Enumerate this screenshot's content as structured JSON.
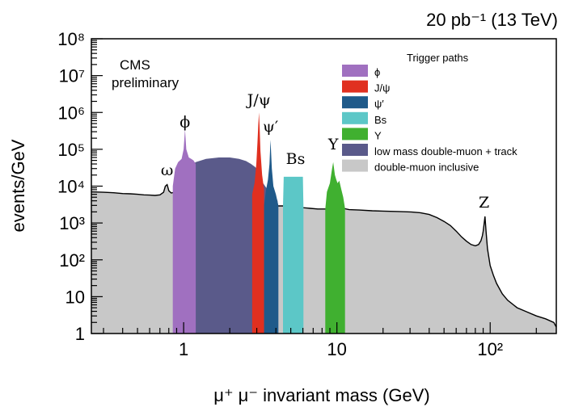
{
  "chart_data": {
    "type": "area",
    "title": "20 pb⁻¹ (13 TeV)",
    "header_left": [
      "CMS",
      "preliminary"
    ],
    "xlabel": "μ⁺ μ⁻ invariant mass (GeV)",
    "ylabel": "events/GeV",
    "x_scale": "log",
    "y_scale": "log",
    "xlim": [
      0.25,
      270
    ],
    "ylim": [
      1,
      100000000.0
    ],
    "grid": false,
    "x_ticks": [
      {
        "value": 1,
        "label": "1"
      },
      {
        "value": 10,
        "label": "10"
      },
      {
        "value": 100,
        "label": "10²"
      }
    ],
    "y_ticks": [
      {
        "value": 1,
        "label": "1"
      },
      {
        "value": 10,
        "label": "10"
      },
      {
        "value": 100,
        "label": "10²"
      },
      {
        "value": 1000,
        "label": "10³"
      },
      {
        "value": 10000,
        "label": "10⁴"
      },
      {
        "value": 100000,
        "label": "10⁵"
      },
      {
        "value": 1000000,
        "label": "10⁶"
      },
      {
        "value": 10000000,
        "label": "10⁷"
      },
      {
        "value": 100000000,
        "label": "10⁸"
      }
    ],
    "legend_title": "Trigger paths",
    "legend_placement": "top-right",
    "legend": [
      {
        "label": "ϕ",
        "color": "#a070c0"
      },
      {
        "label": "J/ψ",
        "color": "#e03020"
      },
      {
        "label": "ψ′",
        "color": "#1f5a8a"
      },
      {
        "label": "Bs",
        "color": "#5cc7c7"
      },
      {
        "label": "Υ",
        "color": "#40b030"
      },
      {
        "label": "low mass double-muon + track",
        "color": "#5a5a8a"
      },
      {
        "label": "double-muon inclusive",
        "color": "#c8c8c8"
      }
    ],
    "annotations": [
      {
        "label": "ω",
        "x": 0.78,
        "y": 20000
      },
      {
        "label": "ϕ",
        "x": 1.02,
        "y": 400000
      },
      {
        "label": "J/ψ",
        "x": 3.1,
        "y": 1600000
      },
      {
        "label": "ψ′",
        "x": 3.69,
        "y": 300000
      },
      {
        "label": "Bs",
        "x": 5.37,
        "y": 40000
      },
      {
        "label": "Υ",
        "x": 9.46,
        "y": 100000
      },
      {
        "label": "Z",
        "x": 91.2,
        "y": 2600
      }
    ],
    "series": [
      {
        "name": "double-muon inclusive",
        "color": "#c8c8c8",
        "x": [
          0.25,
          0.3,
          0.35,
          0.4,
          0.45,
          0.5,
          0.55,
          0.6,
          0.65,
          0.7,
          0.74,
          0.76,
          0.78,
          0.8,
          0.83,
          0.87,
          0.92,
          0.97,
          1.0,
          1.02,
          1.04,
          1.08,
          1.15,
          1.25,
          1.4,
          1.6,
          1.8,
          2.0,
          2.3,
          2.6,
          2.8,
          2.95,
          3.03,
          3.07,
          3.1,
          3.13,
          3.2,
          3.35,
          3.55,
          3.65,
          3.69,
          3.73,
          3.85,
          4.1,
          4.5,
          5.0,
          5.4,
          6.0,
          6.7,
          7.5,
          8.5,
          9.0,
          9.46,
          9.9,
          10.36,
          11.0,
          12,
          14,
          17,
          20,
          25,
          30,
          35,
          40,
          45,
          50,
          55,
          60,
          65,
          70,
          75,
          80,
          84,
          87,
          89,
          90,
          91.2,
          92.5,
          94,
          96,
          100,
          105,
          110,
          120,
          130,
          150,
          170,
          200,
          230,
          260,
          270
        ],
        "y": [
          7000,
          6800,
          6600,
          6300,
          6200,
          6000,
          5800,
          5700,
          5600,
          5800,
          6800,
          10000,
          11000,
          7500,
          6500,
          6800,
          7000,
          8500,
          11000,
          10000,
          8500,
          7800,
          7300,
          7000,
          7000,
          7200,
          7000,
          6500,
          5800,
          5000,
          4600,
          4500,
          7000,
          10000,
          14000,
          9000,
          5000,
          3800,
          3200,
          4200,
          6000,
          4000,
          3000,
          2900,
          2900,
          2900,
          2800,
          2600,
          2500,
          2400,
          2400,
          2500,
          3000,
          2800,
          2700,
          2500,
          2300,
          2250,
          2150,
          2100,
          2050,
          2000,
          1900,
          1700,
          1400,
          1100,
          850,
          600,
          420,
          320,
          260,
          240,
          260,
          330,
          450,
          600,
          900,
          1500,
          600,
          200,
          70,
          38,
          23,
          12,
          8,
          5,
          4,
          3,
          2.5,
          2,
          1.5
        ]
      },
      {
        "name": "low mass double-muon + track",
        "color": "#5a5a8a",
        "x": [
          0.88,
          0.95,
          1.1,
          1.2,
          1.4,
          1.7,
          2.0,
          2.3,
          2.55,
          2.75,
          2.9,
          3.0,
          3.3,
          3.7,
          4.0,
          4.1
        ],
        "y": [
          12000,
          25000,
          35000,
          45000,
          55000,
          60000,
          60000,
          55000,
          48000,
          40000,
          34000,
          30000,
          12000,
          6000,
          5000,
          4000
        ]
      },
      {
        "name": "ϕ",
        "color": "#a070c0",
        "x": [
          0.85,
          0.88,
          0.92,
          0.97,
          1.0,
          1.02,
          1.04,
          1.08,
          1.12,
          1.16,
          1.2
        ],
        "y": [
          10000,
          30000,
          45000,
          55000,
          100000,
          350000,
          100000,
          60000,
          55000,
          50000,
          40000
        ]
      },
      {
        "name": "J/ψ",
        "color": "#e03020",
        "x": [
          2.8,
          2.9,
          2.98,
          3.03,
          3.07,
          3.1,
          3.13,
          3.17,
          3.25,
          3.35
        ],
        "y": [
          6000,
          12000,
          40000,
          150000,
          500000,
          1000000,
          400000,
          90000,
          20000,
          8000
        ]
      },
      {
        "name": "ψ′",
        "color": "#1f5a8a",
        "x": [
          3.35,
          3.45,
          3.55,
          3.63,
          3.67,
          3.69,
          3.71,
          3.76,
          3.85,
          4.0,
          4.15
        ],
        "y": [
          3000,
          8000,
          15000,
          40000,
          120000,
          180000,
          100000,
          30000,
          10000,
          6000,
          3000
        ]
      },
      {
        "name": "Bs",
        "color": "#5cc7c7",
        "x": [
          4.45,
          4.5,
          5.0,
          5.4,
          5.9,
          6.0,
          6.05
        ],
        "y": [
          2900,
          18000,
          18000,
          18000,
          18000,
          18000,
          2600
        ]
      },
      {
        "name": "Υ",
        "color": "#40b030",
        "x": [
          8.4,
          8.6,
          9.0,
          9.3,
          9.46,
          9.7,
          9.9,
          10.1,
          10.36,
          10.7,
          11.0,
          11.3
        ],
        "y": [
          2400,
          7000,
          12000,
          30000,
          45000,
          20000,
          15000,
          12000,
          14000,
          8000,
          5000,
          2500
        ]
      }
    ]
  }
}
